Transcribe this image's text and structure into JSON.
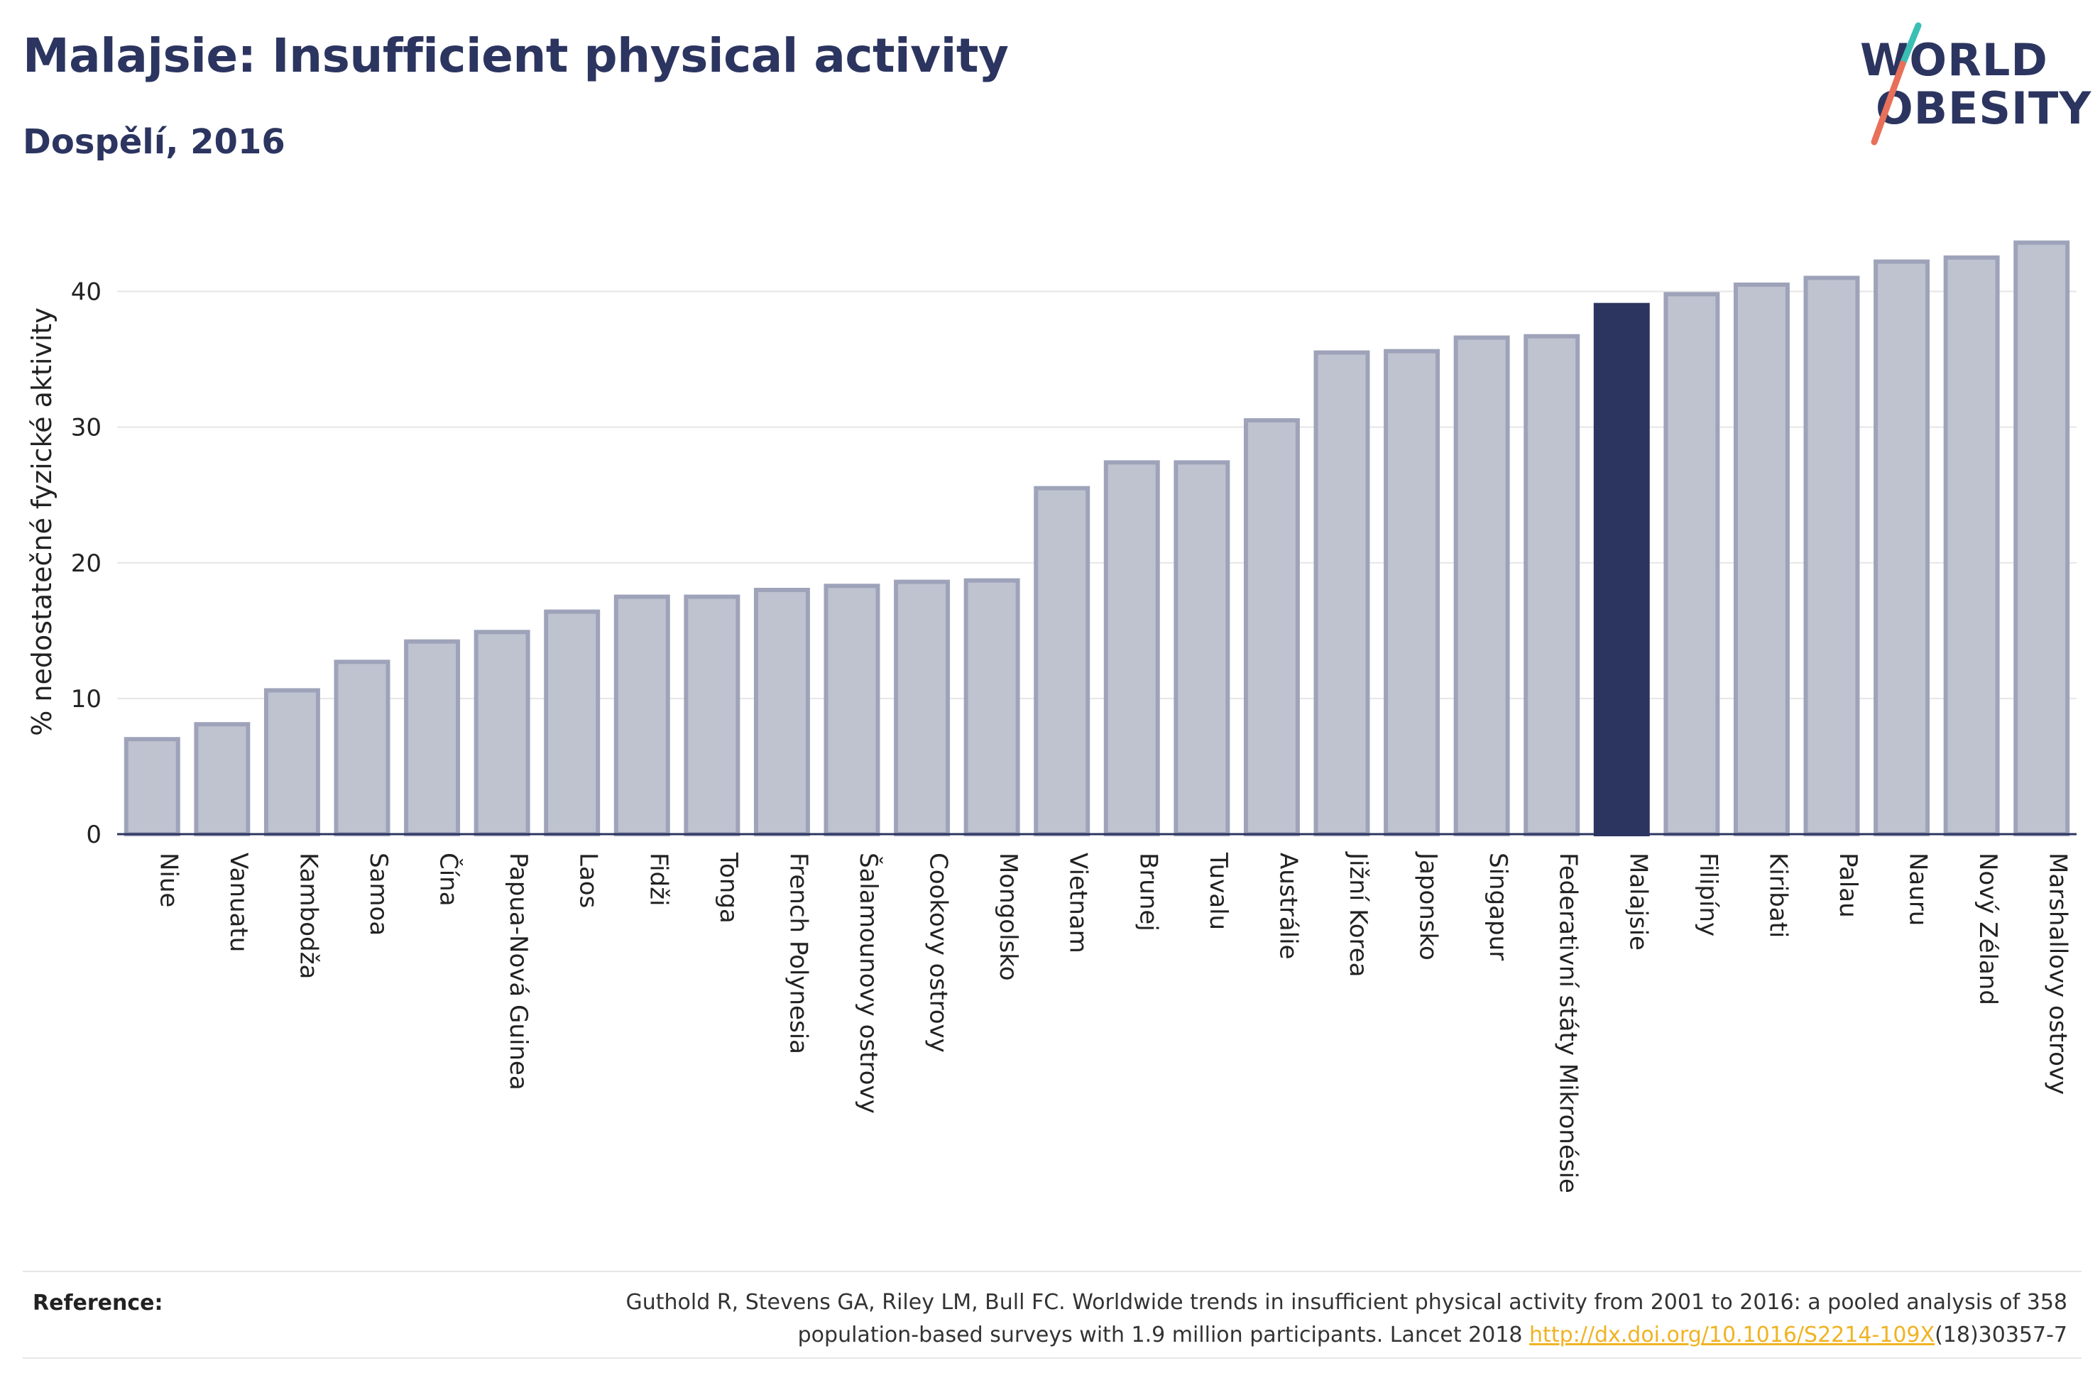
{
  "header": {
    "title": "Malajsie: Insufficient physical activity",
    "subtitle": "Dospělí, 2016"
  },
  "logo": {
    "line1": "WORLD",
    "line2": "OBESITY",
    "colors": {
      "text": "#2c3560",
      "slash_top": "#3bbfb4",
      "slash_bottom": "#e8705a"
    }
  },
  "chart_data": {
    "type": "bar",
    "title": "Malajsie: Insufficient physical activity",
    "subtitle": "Dospělí, 2016",
    "xlabel": "",
    "ylabel": "% nedostatečné fyzické aktivity",
    "ylim": [
      0,
      45
    ],
    "yticks": [
      0,
      10,
      20,
      30,
      40
    ],
    "grid": true,
    "highlight": "Malajsie",
    "colors": {
      "bar": "#bfc3d0",
      "bar_edge": "#9ea3ba",
      "highlight": "#2c3560",
      "grid": "#e6e6e6",
      "axis": "#2c3560"
    },
    "categories": [
      "Niue",
      "Vanuatu",
      "Kambodža",
      "Samoa",
      "Čína",
      "Papua-Nová Guinea",
      "Laos",
      "Fidži",
      "Tonga",
      "French Polynesia",
      "Šalamounovy ostrovy",
      "Cookovy ostrovy",
      "Mongolsko",
      "Vietnam",
      "Brunej",
      "Tuvalu",
      "Austrálie",
      "Jižní Korea",
      "Japonsko",
      "Singapur",
      "Federativní státy Mikronésie",
      "Malajsie",
      "Filipíny",
      "Kiribati",
      "Palau",
      "Nauru",
      "Nový Zéland",
      "Marshallovy ostrovy"
    ],
    "values": [
      7.0,
      8.1,
      10.6,
      12.7,
      14.2,
      14.9,
      16.4,
      17.5,
      17.5,
      18.0,
      18.3,
      18.6,
      18.7,
      25.5,
      27.4,
      27.4,
      30.5,
      35.5,
      35.6,
      36.6,
      36.7,
      39.0,
      39.8,
      40.5,
      41.0,
      42.2,
      42.5,
      43.6
    ]
  },
  "footer": {
    "label": "Reference:",
    "text_line1": "Guthold R, Stevens GA, Riley LM, Bull FC. Worldwide trends in insufficient physical activity from 2001 to 2016: a pooled analysis of 358",
    "text_line2_pre": "population-based surveys with 1.9 million participants. Lancet 2018 ",
    "link": "http://dx.doi.org/10.1016/S2214-109X",
    "text_line2_post": "(18)30357-7"
  }
}
